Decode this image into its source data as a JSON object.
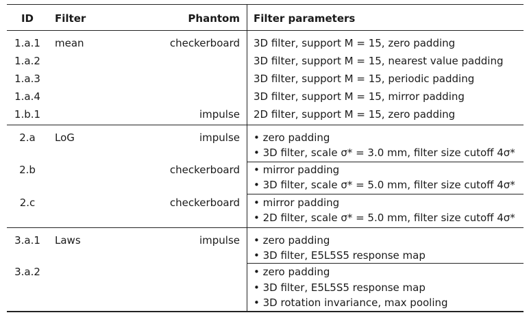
{
  "headers": {
    "id": "ID",
    "filter": "Filter",
    "phantom": "Phantom",
    "params": "Filter parameters"
  },
  "rows": [
    {
      "id": "1.a.1",
      "filter": "mean",
      "phantom": "checkerboard",
      "params": [
        "3D filter, support M = 15, zero padding"
      ]
    },
    {
      "id": "1.a.2",
      "filter": "",
      "phantom": "",
      "params": [
        "3D filter, support M = 15, nearest value padding"
      ]
    },
    {
      "id": "1.a.3",
      "filter": "",
      "phantom": "",
      "params": [
        "3D filter, support M = 15, periodic padding"
      ]
    },
    {
      "id": "1.a.4",
      "filter": "",
      "phantom": "",
      "params": [
        "3D filter, support M = 15, mirror padding"
      ]
    },
    {
      "id": "1.b.1",
      "filter": "",
      "phantom": "impulse",
      "params": [
        "2D filter, support M = 15, zero padding"
      ]
    },
    {
      "id": "2.a",
      "filter": "LoG",
      "phantom": "impulse",
      "params": [
        "• zero padding",
        "• 3D filter, scale σ* = 3.0 mm, filter size cutoff 4σ*"
      ]
    },
    {
      "id": "2.b",
      "filter": "",
      "phantom": "checkerboard",
      "params": [
        "• mirror padding",
        "• 3D filter, scale σ* = 5.0 mm, filter size cutoff 4σ*"
      ]
    },
    {
      "id": "2.c",
      "filter": "",
      "phantom": "checkerboard",
      "params": [
        "• mirror padding",
        "• 2D filter, scale σ* = 5.0 mm, filter size cutoff 4σ*"
      ]
    },
    {
      "id": "3.a.1",
      "filter": "Laws",
      "phantom": "impulse",
      "params": [
        "• zero padding",
        "• 3D filter, E5L5S5 response map"
      ]
    },
    {
      "id": "3.a.2",
      "filter": "",
      "phantom": "",
      "params": [
        "• zero padding",
        "• 3D filter, E5L5S5 response map",
        "• 3D rotation invariance, max pooling"
      ]
    }
  ]
}
